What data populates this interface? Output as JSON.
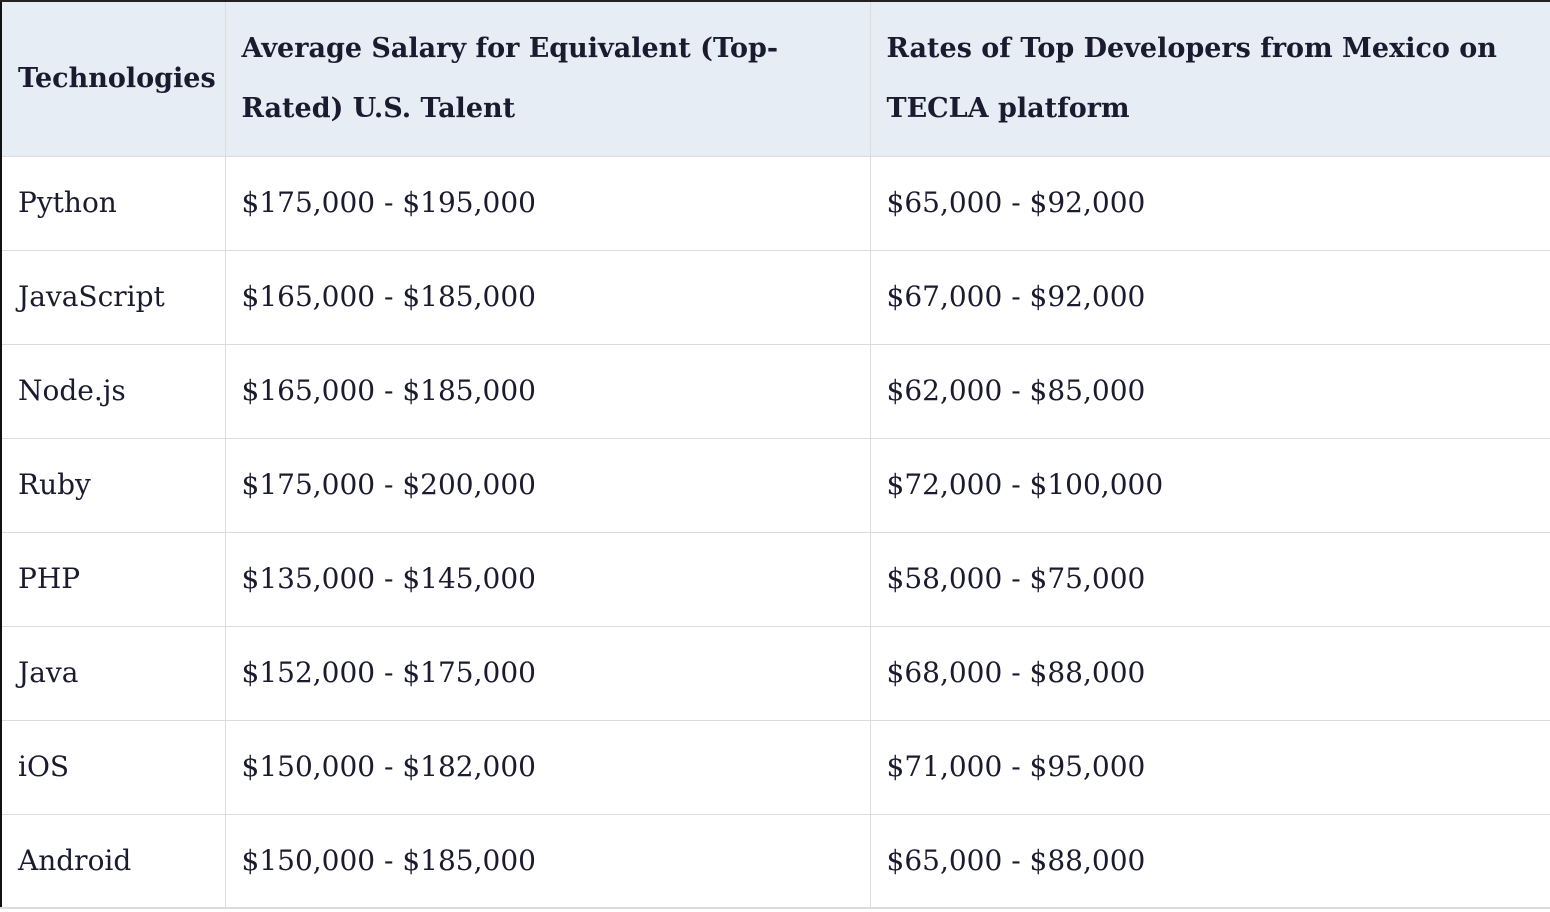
{
  "table": {
    "headers": [
      "Technologies",
      "Average Salary for Equivalent (Top-Rated) U.S. Talent",
      "Rates of Top Developers from Mexico on TECLA platform"
    ],
    "rows": [
      [
        "Python",
        "$175,000 - $195,000",
        "$65,000 - $92,000"
      ],
      [
        "JavaScript",
        "$165,000 - $185,000",
        "$67,000 - $92,000"
      ],
      [
        "Node.js",
        "$165,000 - $185,000",
        "$62,000 - $85,000"
      ],
      [
        "Ruby",
        "$175,000 - $200,000",
        "$72,000 - $100,000"
      ],
      [
        "PHP",
        "$135,000 - $145,000",
        "$58,000 - $75,000"
      ],
      [
        "Java",
        "$152,000 - $175,000",
        "$68,000 - $88,000"
      ],
      [
        "iOS",
        "$150,000 - $182,000",
        "$71,000 - $95,000"
      ],
      [
        "Android",
        "$150,000 - $185,000",
        "$65,000 - $88,000"
      ]
    ]
  }
}
